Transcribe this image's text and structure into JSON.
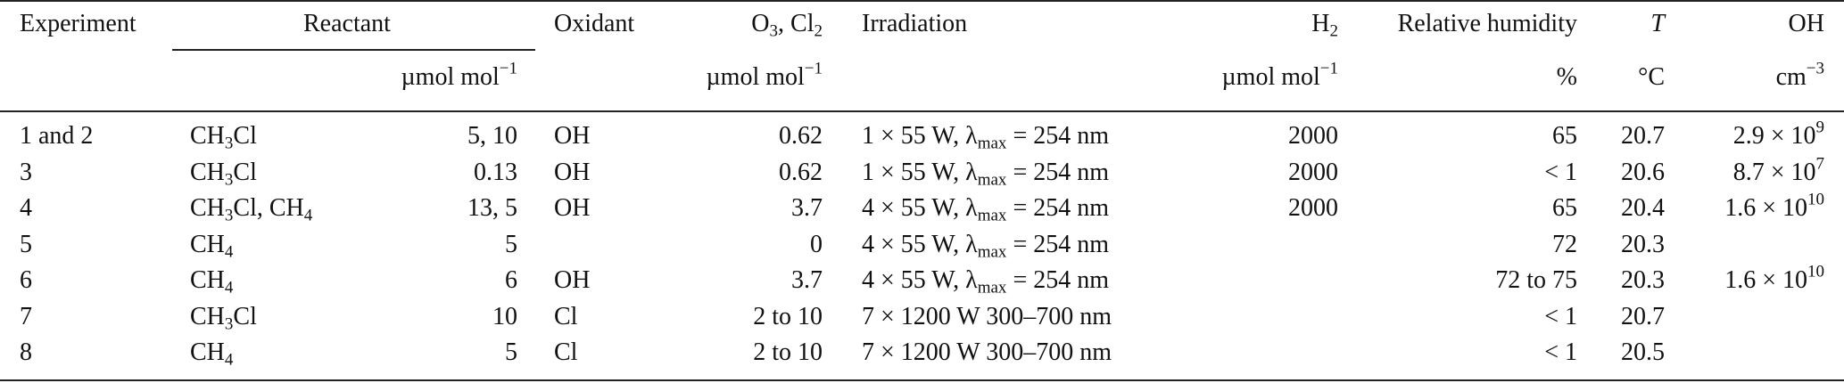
{
  "header": {
    "experiment": "Experiment",
    "reactant": "Reactant",
    "oxidant": "Oxidant",
    "o3cl2": {
      "a": "O",
      "a_sub": "3",
      "b": ", Cl",
      "b_sub": "2"
    },
    "irradiation": "Irradiation",
    "h2": {
      "a": "H",
      "a_sub": "2"
    },
    "rh": "Relative humidity",
    "t": "T",
    "oh": "OH"
  },
  "units": {
    "reactant": {
      "a": "µmol mol",
      "sup": "−1"
    },
    "o3cl2": {
      "a": "µmol mol",
      "sup": "−1"
    },
    "h2": {
      "a": "µmol mol",
      "sup": "−1"
    },
    "rh": "%",
    "t": "°C",
    "oh": {
      "a": "cm",
      "sup": "−3"
    }
  },
  "rows": [
    {
      "experiment": "1 and 2",
      "reactant_html": "CH<sub>3</sub>Cl",
      "amount": "5, 10",
      "oxidant": "OH",
      "o3cl2": "0.62",
      "irradiation_html": "1 × 55 W, λ<sub>max</sub> = 254 nm",
      "h2": "2000",
      "rh": "65",
      "t": "20.7",
      "oh_html": "2.9 × 10<sup>9</sup>"
    },
    {
      "experiment": "3",
      "reactant_html": "CH<sub>3</sub>Cl",
      "amount": "0.13",
      "oxidant": "OH",
      "o3cl2": "0.62",
      "irradiation_html": "1 × 55 W, λ<sub>max</sub> = 254 nm",
      "h2": "2000",
      "rh": "< 1",
      "t": "20.6",
      "oh_html": "8.7 × 10<sup>7</sup>"
    },
    {
      "experiment": "4",
      "reactant_html": "CH<sub>3</sub>Cl, CH<sub>4</sub>",
      "amount": "13, 5",
      "oxidant": "OH",
      "o3cl2": "3.7",
      "irradiation_html": "4 × 55 W, λ<sub>max</sub> = 254 nm",
      "h2": "2000",
      "rh": "65",
      "t": "20.4",
      "oh_html": "1.6 × 10<sup>10</sup>"
    },
    {
      "experiment": "5",
      "reactant_html": "CH<sub>4</sub>",
      "amount": "5",
      "oxidant": "",
      "o3cl2": "0",
      "irradiation_html": "4 × 55 W, λ<sub>max</sub> = 254 nm",
      "h2": "",
      "rh": "72",
      "t": "20.3",
      "oh_html": ""
    },
    {
      "experiment": "6",
      "reactant_html": "CH<sub>4</sub>",
      "amount": "6",
      "oxidant": "OH",
      "o3cl2": "3.7",
      "irradiation_html": "4 × 55 W, λ<sub>max</sub> = 254 nm",
      "h2": "",
      "rh": "72 to 75",
      "t": "20.3",
      "oh_html": "1.6 × 10<sup>10</sup>"
    },
    {
      "experiment": "7",
      "reactant_html": "CH<sub>3</sub>Cl",
      "amount": "10",
      "oxidant": "Cl",
      "o3cl2": "2 to 10",
      "irradiation_html": "7 × 1200 W 300–700 nm",
      "h2": "",
      "rh": "< 1",
      "t": "20.7",
      "oh_html": ""
    },
    {
      "experiment": "8",
      "reactant_html": "CH<sub>4</sub>",
      "amount": "5",
      "oxidant": "Cl",
      "o3cl2": "2 to 10",
      "irradiation_html": "7 × 1200 W 300–700 nm",
      "h2": "",
      "rh": "< 1",
      "t": "20.5",
      "oh_html": ""
    }
  ]
}
